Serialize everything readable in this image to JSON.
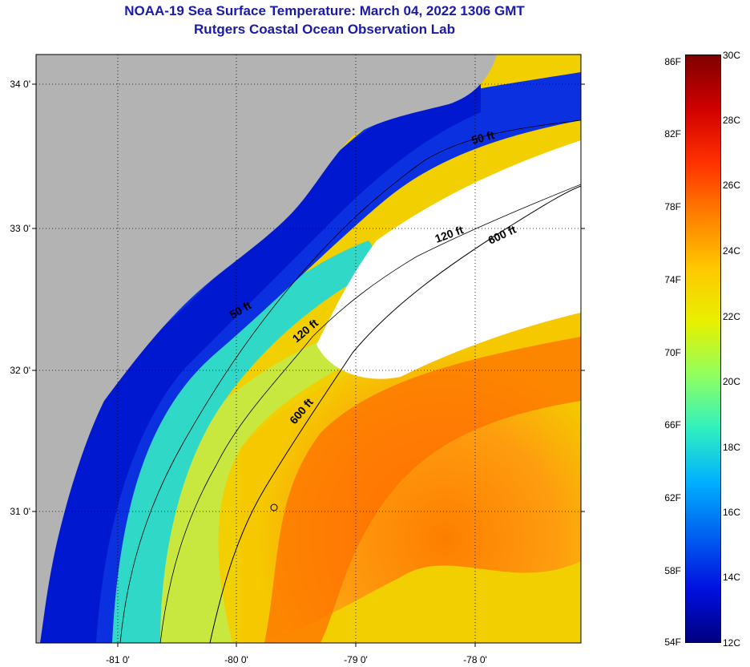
{
  "header": {
    "title_line1": "NOAA-19 Sea Surface Temperature:  March 04, 2022 1306 GMT",
    "title_line2": "Rutgers Coastal Ocean Observation Lab"
  },
  "map": {
    "lat_labels": [
      "34 0'",
      "33 0'",
      "32 0'",
      "31 0'"
    ],
    "lon_labels": [
      "-81 0'",
      "-80 0'",
      "-79 0'",
      "-78 0'"
    ],
    "contour_labels": [
      "50 ft",
      "50 ft",
      "120 ft",
      "120 ft",
      "600 ft",
      "600 ft"
    ],
    "colors": {
      "land": "#b3b3b3",
      "cloud": "#ffffff",
      "cold": "#0a1ee0",
      "mid": "#36e0d0",
      "warm": "#ff7a00",
      "yellow": "#f5df00"
    }
  },
  "colorbar": {
    "fahrenheit_labels": [
      "86F",
      "82F",
      "78F",
      "74F",
      "70F",
      "66F",
      "62F",
      "58F",
      "54F"
    ],
    "celsius_labels": [
      "30C",
      "28C",
      "26C",
      "24C",
      "22C",
      "20C",
      "18C",
      "16C",
      "14C",
      "12C"
    ],
    "gradient_stops": [
      "#7f0000",
      "#d00000",
      "#ff3000",
      "#ff8000",
      "#ffc800",
      "#e8f000",
      "#90ff60",
      "#30f0c0",
      "#00b0ff",
      "#0060f0",
      "#0010e0",
      "#000080"
    ]
  }
}
